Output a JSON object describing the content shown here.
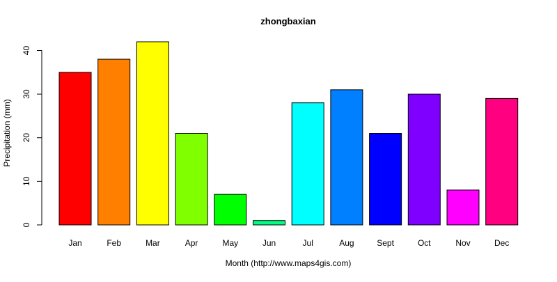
{
  "chart_data": {
    "type": "bar",
    "title": "zhongbaxian",
    "xlabel": "Month (http://www.maps4gis.com)",
    "ylabel": "Precipitation (mm)",
    "categories": [
      "Jan",
      "Feb",
      "Mar",
      "Apr",
      "May",
      "Jun",
      "Jul",
      "Aug",
      "Sept",
      "Oct",
      "Nov",
      "Dec"
    ],
    "values": [
      35,
      38,
      42,
      21,
      7,
      1,
      28,
      31,
      21,
      30,
      8,
      29
    ],
    "colors": [
      "#FF0000",
      "#FF8000",
      "#FFFF00",
      "#80FF00",
      "#00FF00",
      "#00FF80",
      "#00FFFF",
      "#0080FF",
      "#0000FF",
      "#8000FF",
      "#FF00FF",
      "#FF0080"
    ],
    "ylim": [
      0,
      42
    ],
    "yticks": [
      0,
      10,
      20,
      30,
      40
    ],
    "grid": false,
    "legend": "none"
  }
}
